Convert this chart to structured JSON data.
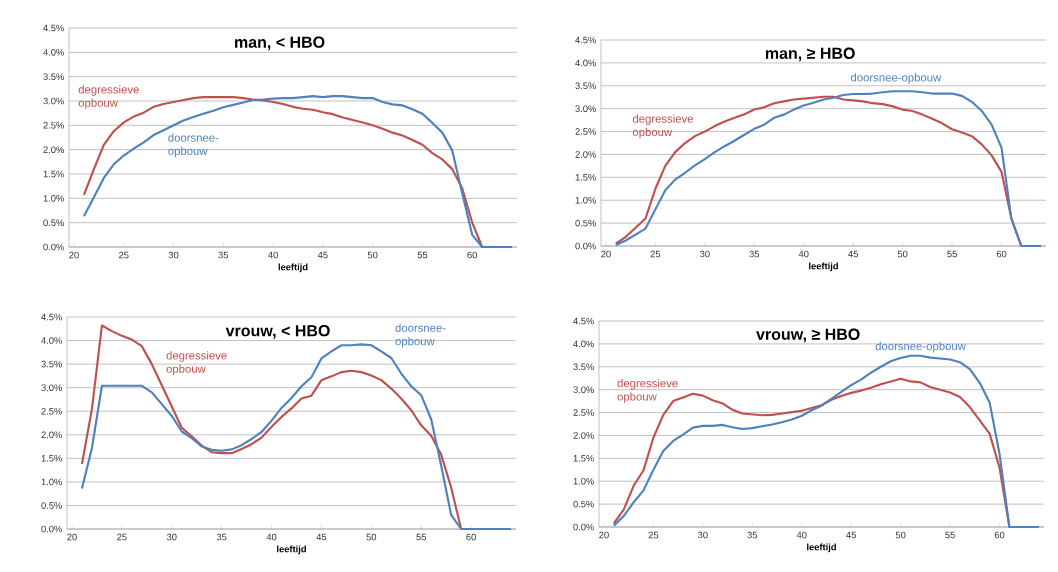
{
  "chart_data": [
    {
      "type": "line",
      "title": "man, < HBO",
      "xlabel": "leeftijd",
      "categories": [
        "20",
        null,
        null,
        null,
        null,
        "25",
        null,
        null,
        null,
        null,
        "30",
        null,
        null,
        null,
        null,
        "35",
        null,
        null,
        null,
        null,
        "40",
        null,
        null,
        null,
        null,
        "45",
        null,
        null,
        null,
        null,
        "50",
        null,
        null,
        null,
        null,
        "55",
        null,
        null,
        null,
        null,
        "60",
        null,
        null,
        null,
        null
      ],
      "ylim": [
        0,
        4.5
      ],
      "yticks": [
        {
          "value": 0,
          "label": "0.0%"
        },
        {
          "value": 0.5,
          "label": "0.5%"
        },
        {
          "value": 1,
          "label": "1.0%"
        },
        {
          "value": 1.5,
          "label": "1.5%"
        },
        {
          "value": 2,
          "label": "2.0%"
        },
        {
          "value": 2.5,
          "label": "2.5%"
        },
        {
          "value": 3,
          "label": "3.0%"
        },
        {
          "value": 3.5,
          "label": "3.5%"
        },
        {
          "value": 4,
          "label": "4.0%"
        },
        {
          "value": 4.5,
          "label": "4.5%"
        }
      ],
      "grid": "y",
      "series": [
        {
          "name": "degressieve opbouw",
          "color": "#c0504d",
          "values": [
            null,
            1.07,
            1.6,
            2.1,
            2.38,
            2.56,
            2.68,
            2.76,
            2.88,
            2.94,
            2.98,
            3.02,
            3.06,
            3.08,
            3.08,
            3.08,
            3.08,
            3.06,
            3.03,
            3.01,
            2.98,
            2.94,
            2.88,
            2.84,
            2.82,
            2.77,
            2.73,
            2.66,
            2.61,
            2.56,
            2.5,
            2.43,
            2.35,
            2.29,
            2.2,
            2.1,
            1.93,
            1.8,
            1.6,
            1.2,
            0.5,
            0,
            0,
            null,
            null
          ]
        },
        {
          "name": "doorsnee-opbouw",
          "color": "#4f81bd",
          "values": [
            null,
            0.63,
            1.02,
            1.42,
            1.7,
            1.88,
            2.02,
            2.15,
            2.3,
            2.4,
            2.5,
            2.6,
            2.67,
            2.74,
            2.8,
            2.87,
            2.92,
            2.97,
            3.02,
            3.03,
            3.05,
            3.06,
            3.06,
            3.08,
            3.1,
            3.08,
            3.1,
            3.1,
            3.08,
            3.06,
            3.06,
            2.98,
            2.93,
            2.91,
            2.83,
            2.74,
            2.55,
            2.35,
            1.98,
            1.1,
            0.25,
            0,
            0,
            0,
            0
          ]
        }
      ]
    },
    {
      "type": "line",
      "title": "man, ≥ HBO",
      "xlabel": "leeftijd",
      "categories": [
        "20",
        null,
        null,
        null,
        null,
        "25",
        null,
        null,
        null,
        null,
        "30",
        null,
        null,
        null,
        null,
        "35",
        null,
        null,
        null,
        null,
        "40",
        null,
        null,
        null,
        null,
        "45",
        null,
        null,
        null,
        null,
        "50",
        null,
        null,
        null,
        null,
        "55",
        null,
        null,
        null,
        null,
        "60",
        null,
        null,
        null,
        null
      ],
      "ylim": [
        0,
        4.5
      ],
      "yticks": [
        {
          "value": 0,
          "label": "0.0%"
        },
        {
          "value": 0.5,
          "label": "0.5%"
        },
        {
          "value": 1,
          "label": "1.0%"
        },
        {
          "value": 1.5,
          "label": "1.5%"
        },
        {
          "value": 2,
          "label": "2.0%"
        },
        {
          "value": 2.5,
          "label": "2.5%"
        },
        {
          "value": 3,
          "label": "3.0%"
        },
        {
          "value": 3.5,
          "label": "3.5%"
        },
        {
          "value": 4,
          "label": "4.0%"
        },
        {
          "value": 4.5,
          "label": "4.5%"
        }
      ],
      "grid": "y",
      "series": [
        {
          "name": "degressieve opbouw",
          "color": "#c0504d",
          "values": [
            null,
            0.05,
            0.2,
            0.4,
            0.6,
            1.25,
            1.75,
            2.05,
            2.25,
            2.4,
            2.5,
            2.62,
            2.72,
            2.8,
            2.88,
            2.98,
            3.03,
            3.12,
            3.16,
            3.2,
            3.22,
            3.24,
            3.26,
            3.26,
            3.2,
            3.18,
            3.16,
            3.12,
            3.1,
            3.05,
            2.98,
            2.95,
            2.87,
            2.78,
            2.68,
            2.55,
            2.48,
            2.4,
            2.22,
            1.98,
            1.62,
            0.6,
            0,
            null,
            null
          ]
        },
        {
          "name": "doorsnee-opbouw",
          "color": "#4f81bd",
          "values": [
            null,
            0.02,
            0.12,
            0.25,
            0.38,
            0.8,
            1.22,
            1.45,
            1.6,
            1.76,
            1.9,
            2.05,
            2.18,
            2.3,
            2.43,
            2.56,
            2.65,
            2.8,
            2.87,
            2.98,
            3.07,
            3.13,
            3.2,
            3.24,
            3.3,
            3.32,
            3.32,
            3.33,
            3.36,
            3.38,
            3.38,
            3.38,
            3.36,
            3.33,
            3.33,
            3.33,
            3.28,
            3.15,
            2.95,
            2.65,
            2.15,
            0.6,
            0,
            0,
            0
          ]
        }
      ]
    },
    {
      "type": "line",
      "title": "vrouw, < HBO",
      "xlabel": "leeftijd",
      "categories": [
        "20",
        null,
        null,
        null,
        null,
        "25",
        null,
        null,
        null,
        null,
        "30",
        null,
        null,
        null,
        null,
        "35",
        null,
        null,
        null,
        null,
        "40",
        null,
        null,
        null,
        null,
        "45",
        null,
        null,
        null,
        null,
        "50",
        null,
        null,
        null,
        null,
        "55",
        null,
        null,
        null,
        null,
        "60",
        null,
        null,
        null,
        null
      ],
      "ylim": [
        0,
        4.5
      ],
      "yticks": [
        {
          "value": 0,
          "label": "0.0%"
        },
        {
          "value": 0.5,
          "label": "0.5%"
        },
        {
          "value": 1,
          "label": "1.0%"
        },
        {
          "value": 1.5,
          "label": "1.5%"
        },
        {
          "value": 2,
          "label": "2.0%"
        },
        {
          "value": 2.5,
          "label": "2.5%"
        },
        {
          "value": 3,
          "label": "3.0%"
        },
        {
          "value": 3.5,
          "label": "3.5%"
        },
        {
          "value": 4,
          "label": "4.0%"
        },
        {
          "value": 4.5,
          "label": "4.5%"
        }
      ],
      "grid": "y",
      "series": [
        {
          "name": "degressieve opbouw",
          "color": "#c0504d",
          "values": [
            null,
            1.38,
            2.55,
            4.32,
            4.2,
            4.1,
            4.02,
            3.88,
            3.5,
            3.05,
            2.6,
            2.15,
            1.97,
            1.77,
            1.63,
            1.61,
            1.61,
            1.7,
            1.8,
            1.94,
            2.17,
            2.38,
            2.56,
            2.77,
            2.83,
            3.16,
            3.24,
            3.33,
            3.36,
            3.33,
            3.26,
            3.16,
            2.98,
            2.77,
            2.52,
            2.2,
            1.98,
            1.58,
            0.88,
            0,
            0,
            null,
            null,
            null,
            null
          ]
        },
        {
          "name": "doorsnee-opbouw",
          "color": "#4f81bd",
          "values": [
            null,
            0.86,
            1.72,
            3.04,
            3.04,
            3.04,
            3.04,
            3.04,
            2.9,
            2.65,
            2.4,
            2.07,
            1.93,
            1.75,
            1.68,
            1.66,
            1.69,
            1.78,
            1.91,
            2.06,
            2.3,
            2.57,
            2.78,
            3.03,
            3.22,
            3.62,
            3.77,
            3.9,
            3.9,
            3.92,
            3.9,
            3.77,
            3.63,
            3.3,
            3.03,
            2.84,
            2.33,
            1.35,
            0.3,
            0,
            0,
            0,
            0,
            0,
            0
          ]
        }
      ]
    },
    {
      "type": "line",
      "title": "vrouw, ≥ HBO",
      "xlabel": "leeftijd",
      "categories": [
        "20",
        null,
        null,
        null,
        null,
        "25",
        null,
        null,
        null,
        null,
        "30",
        null,
        null,
        null,
        null,
        "35",
        null,
        null,
        null,
        null,
        "40",
        null,
        null,
        null,
        null,
        "45",
        null,
        null,
        null,
        null,
        "50",
        null,
        null,
        null,
        null,
        "55",
        null,
        null,
        null,
        null,
        "60",
        null,
        null,
        null,
        null
      ],
      "ylim": [
        0,
        4.5
      ],
      "yticks": [
        {
          "value": 0,
          "label": "0.0%"
        },
        {
          "value": 0.5,
          "label": "0.5%"
        },
        {
          "value": 1,
          "label": "1.0%"
        },
        {
          "value": 1.5,
          "label": "1.5%"
        },
        {
          "value": 2,
          "label": "2.0%"
        },
        {
          "value": 2.5,
          "label": "2.5%"
        },
        {
          "value": 3,
          "label": "3.0%"
        },
        {
          "value": 3.5,
          "label": "3.5%"
        },
        {
          "value": 4,
          "label": "4.0%"
        },
        {
          "value": 4.5,
          "label": "4.5%"
        }
      ],
      "grid": "y",
      "series": [
        {
          "name": "degressieve opbouw",
          "color": "#c0504d",
          "values": [
            null,
            0.08,
            0.38,
            0.9,
            1.24,
            1.95,
            2.45,
            2.75,
            2.83,
            2.91,
            2.87,
            2.77,
            2.7,
            2.56,
            2.48,
            2.46,
            2.44,
            2.45,
            2.48,
            2.51,
            2.54,
            2.6,
            2.66,
            2.78,
            2.86,
            2.93,
            2.98,
            3.04,
            3.12,
            3.18,
            3.24,
            3.18,
            3.16,
            3.06,
            3.0,
            2.94,
            2.84,
            2.62,
            2.33,
            2.04,
            1.3,
            0,
            0,
            null,
            null
          ]
        },
        {
          "name": "doorsnee-opbouw",
          "color": "#4f81bd",
          "values": [
            null,
            0.03,
            0.24,
            0.54,
            0.8,
            1.25,
            1.66,
            1.88,
            2.02,
            2.17,
            2.21,
            2.21,
            2.23,
            2.18,
            2.14,
            2.16,
            2.2,
            2.24,
            2.29,
            2.35,
            2.43,
            2.55,
            2.65,
            2.8,
            2.95,
            3.1,
            3.22,
            3.37,
            3.5,
            3.62,
            3.69,
            3.74,
            3.74,
            3.7,
            3.68,
            3.66,
            3.6,
            3.45,
            3.15,
            2.72,
            1.6,
            0,
            0,
            0,
            0
          ]
        }
      ]
    }
  ]
}
